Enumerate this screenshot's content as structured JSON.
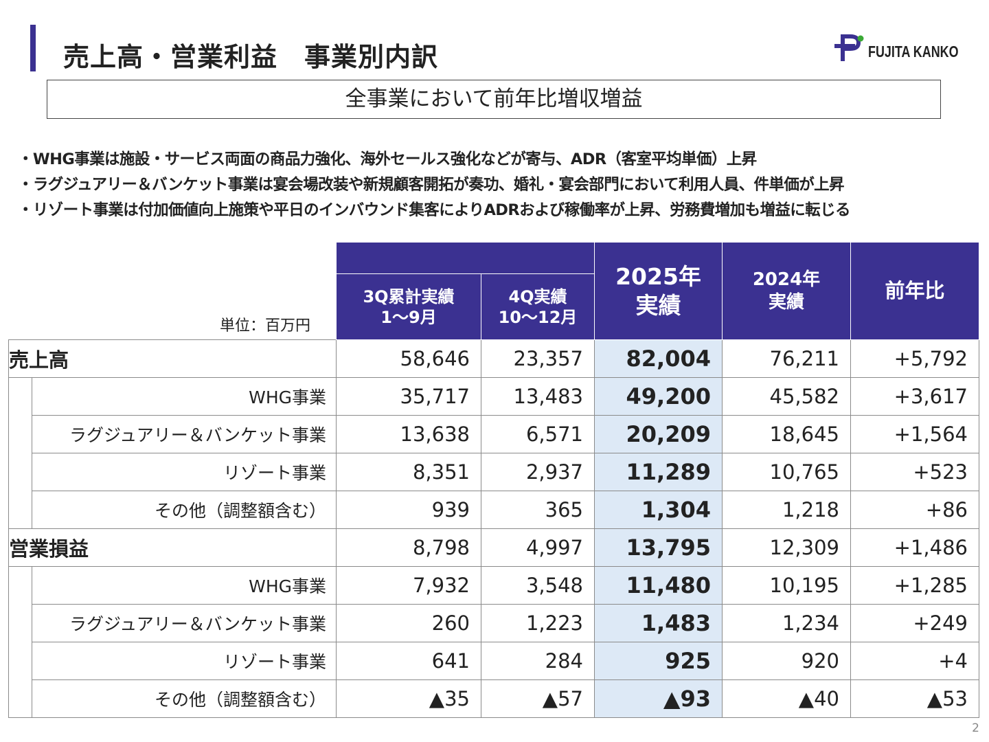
{
  "header": {
    "title": "売上高・営業利益　事業別内訳",
    "logo_text": "FUJITA KANKO",
    "headline": "全事業において前年比増収増益"
  },
  "bullets": [
    "WHG事業は施設・サービス両面の商品力強化、海外セールス強化などが寄与、ADR（客室平均単価）上昇",
    "ラグジュアリー＆バンケット事業は宴会場改装や新規顧客開拓が奏功、婚礼・宴会部門において利用人員、件単価が上昇",
    "リゾート事業は付加価値向上施策や平日のインバウンド集客によりADRおよび稼働率が上昇、労務費増加も増益に転じる"
  ],
  "table": {
    "unit": "単位：百万円",
    "headers": {
      "q3": "3Q累計実績\n1〜9月",
      "q4": "4Q実績\n10〜12月",
      "y2025": "2025年\n実績",
      "y2024": "2024年\n実績",
      "yoy": "前年比"
    },
    "rows": [
      {
        "label": "売上高",
        "q3": "58,646",
        "q4": "23,357",
        "y2025": "82,004",
        "y2024": "76,211",
        "yoy": "+5,792"
      },
      {
        "label": "WHG事業",
        "q3": "35,717",
        "q4": "13,483",
        "y2025": "49,200",
        "y2024": "45,582",
        "yoy": "+3,617"
      },
      {
        "label": "ラグジュアリー＆バンケット事業",
        "q3": "13,638",
        "q4": "6,571",
        "y2025": "20,209",
        "y2024": "18,645",
        "yoy": "+1,564"
      },
      {
        "label": "リゾート事業",
        "q3": "8,351",
        "q4": "2,937",
        "y2025": "11,289",
        "y2024": "10,765",
        "yoy": "+523"
      },
      {
        "label": "その他（調整額含む）",
        "q3": "939",
        "q4": "365",
        "y2025": "1,304",
        "y2024": "1,218",
        "yoy": "+86"
      },
      {
        "label": "営業損益",
        "q3": "8,798",
        "q4": "4,997",
        "y2025": "13,795",
        "y2024": "12,309",
        "yoy": "+1,486"
      },
      {
        "label": "WHG事業",
        "q3": "7,932",
        "q4": "3,548",
        "y2025": "11,480",
        "y2024": "10,195",
        "yoy": "+1,285"
      },
      {
        "label": "ラグジュアリー＆バンケット事業",
        "q3": "260",
        "q4": "1,223",
        "y2025": "1,483",
        "y2024": "1,234",
        "yoy": "+249"
      },
      {
        "label": "リゾート事業",
        "q3": "641",
        "q4": "284",
        "y2025": "925",
        "y2024": "920",
        "yoy": "+4"
      },
      {
        "label": "その他（調整額含む）",
        "q3": "▲35",
        "q4": "▲57",
        "y2025": "▲93",
        "y2024": "▲40",
        "yoy": "▲53"
      }
    ]
  },
  "page_number": "2",
  "colors": {
    "accent": "#3b3191",
    "highlight": "#dde9f6",
    "logo_green": "#3aa935"
  }
}
